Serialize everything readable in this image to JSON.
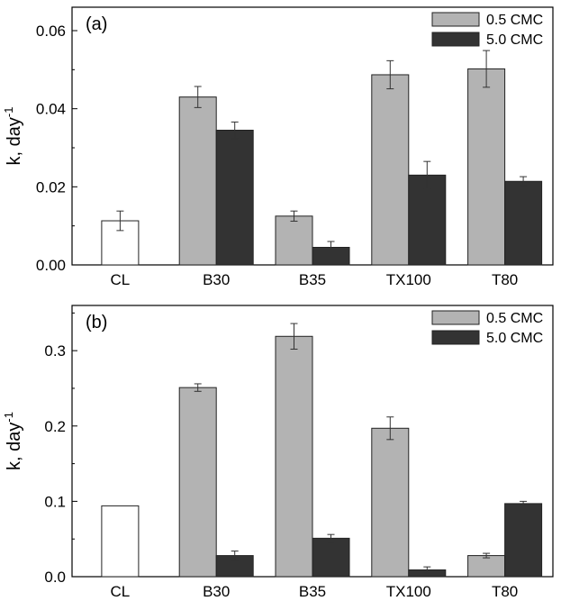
{
  "chart_data": [
    {
      "type": "bar",
      "panel_label": "(a)",
      "categories": [
        "CL",
        "B30",
        "B35",
        "TX100",
        "T80"
      ],
      "ylabel": "k, day",
      "ylabel_sup": "-1",
      "ylim": [
        0,
        0.066
      ],
      "yticks": [
        "0.00",
        "0.02",
        "0.04",
        "0.06"
      ],
      "ytick_values": [
        0,
        0.02,
        0.04,
        0.06
      ],
      "legend_position": "top-right",
      "control": {
        "category": "CL",
        "value": 0.0113,
        "error": 0.0025,
        "color": "#ffffff"
      },
      "series": [
        {
          "name": "0.5 CMC",
          "color": "#b3b3b3",
          "values": [
            null,
            0.043,
            0.0125,
            0.0487,
            0.0502
          ],
          "errors": [
            null,
            0.0027,
            0.0013,
            0.0036,
            0.0047
          ]
        },
        {
          "name": "5.0 CMC",
          "color": "#333333",
          "values": [
            null,
            0.0345,
            0.0045,
            0.023,
            0.0214
          ],
          "errors": [
            null,
            0.0021,
            0.0015,
            0.0035,
            0.0012
          ]
        }
      ]
    },
    {
      "type": "bar",
      "panel_label": "(b)",
      "categories": [
        "CL",
        "B30",
        "B35",
        "TX100",
        "T80"
      ],
      "ylabel": "k, day",
      "ylabel_sup": "-1",
      "ylim": [
        0,
        0.36
      ],
      "yticks": [
        "0.0",
        "0.1",
        "0.2",
        "0.3"
      ],
      "ytick_values": [
        0,
        0.1,
        0.2,
        0.3
      ],
      "legend_position": "top-right",
      "control": {
        "category": "CL",
        "value": 0.094,
        "error": 0,
        "color": "#ffffff"
      },
      "series": [
        {
          "name": "0.5 CMC",
          "color": "#b3b3b3",
          "values": [
            null,
            0.251,
            0.319,
            0.197,
            0.028
          ],
          "errors": [
            null,
            0.005,
            0.017,
            0.015,
            0.003
          ]
        },
        {
          "name": "5.0 CMC",
          "color": "#333333",
          "values": [
            null,
            0.028,
            0.051,
            0.009,
            0.097
          ],
          "errors": [
            null,
            0.006,
            0.005,
            0.004,
            0.003
          ]
        }
      ]
    }
  ]
}
